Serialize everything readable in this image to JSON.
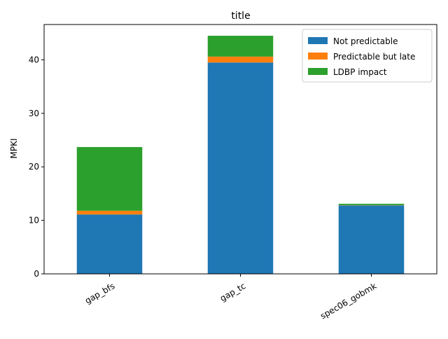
{
  "chart_data": {
    "type": "bar",
    "stacked": true,
    "title": "title",
    "xlabel": "",
    "ylabel": "MPKI",
    "ylim": [
      0,
      46.6
    ],
    "yticks": [
      0,
      10,
      20,
      30,
      40
    ],
    "categories": [
      "gap_bfs",
      "gap_tc",
      "spec06_gobmk"
    ],
    "series": [
      {
        "name": "Not predictable",
        "color": "#1f77b4",
        "values": [
          11.1,
          39.5,
          12.8
        ]
      },
      {
        "name": "Predictable but late",
        "color": "#ff7f0e",
        "values": [
          0.7,
          1.1,
          0.05
        ]
      },
      {
        "name": "LDBP impact",
        "color": "#2ca02c",
        "values": [
          11.9,
          3.9,
          0.25
        ]
      }
    ],
    "legend_position": "top-right",
    "grid": false
  }
}
